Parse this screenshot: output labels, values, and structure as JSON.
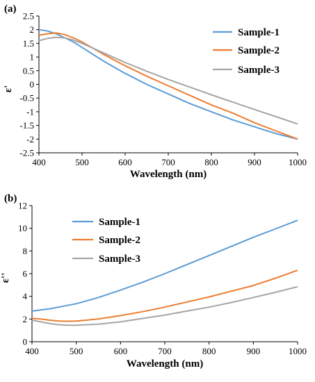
{
  "chart_data": [
    {
      "type": "line",
      "panel_label": "(a)",
      "xlabel": "Wavelength  (nm)",
      "ylabel": "ε'",
      "xlim": [
        400,
        1000
      ],
      "ylim": [
        -2.5,
        2.5
      ],
      "x_ticks": [
        "400",
        "500",
        "600",
        "700",
        "800",
        "900",
        "1000"
      ],
      "y_ticks": [
        "2.5",
        "2",
        "1.5",
        "1",
        "0.5",
        "0",
        "-0.5",
        "-1",
        "-1.5",
        "-2",
        "-2.5"
      ],
      "grid": false,
      "legend_position": "top-right",
      "x": [
        400,
        420,
        440,
        460,
        480,
        500,
        550,
        600,
        650,
        700,
        750,
        800,
        850,
        900,
        950,
        1000
      ],
      "series": [
        {
          "name": "Sample-1",
          "color": "#5B9BD5",
          "values": [
            2.0,
            1.95,
            1.85,
            1.7,
            1.55,
            1.35,
            0.85,
            0.4,
            0.0,
            -0.35,
            -0.7,
            -1.0,
            -1.3,
            -1.55,
            -1.8,
            -2.0
          ]
        },
        {
          "name": "Sample-2",
          "color": "#ED7D31",
          "values": [
            1.8,
            1.85,
            1.88,
            1.82,
            1.7,
            1.55,
            1.1,
            0.68,
            0.3,
            -0.05,
            -0.4,
            -0.75,
            -1.05,
            -1.4,
            -1.7,
            -2.0
          ]
        },
        {
          "name": "Sample-3",
          "color": "#A5A5A5",
          "values": [
            1.6,
            1.68,
            1.72,
            1.7,
            1.62,
            1.5,
            1.15,
            0.8,
            0.48,
            0.18,
            -0.1,
            -0.38,
            -0.65,
            -0.92,
            -1.18,
            -1.45
          ]
        }
      ]
    },
    {
      "type": "line",
      "panel_label": "(b)",
      "xlabel": "Wavelength  (nm)",
      "ylabel": "ε''",
      "xlim": [
        400,
        1000
      ],
      "ylim": [
        0,
        12
      ],
      "x_ticks": [
        "400",
        "500",
        "600",
        "700",
        "800",
        "900",
        "1000"
      ],
      "y_ticks": [
        "12",
        "10",
        "8",
        "6",
        "4",
        "2",
        "0"
      ],
      "grid": false,
      "legend_position": "top-left",
      "x": [
        400,
        420,
        440,
        460,
        480,
        500,
        550,
        600,
        650,
        700,
        750,
        800,
        850,
        900,
        950,
        1000
      ],
      "series": [
        {
          "name": "Sample-1",
          "color": "#5B9BD5",
          "values": [
            2.7,
            2.8,
            2.9,
            3.05,
            3.2,
            3.35,
            3.9,
            4.55,
            5.25,
            6.0,
            6.8,
            7.6,
            8.4,
            9.2,
            9.95,
            10.7
          ]
        },
        {
          "name": "Sample-2",
          "color": "#ED7D31",
          "values": [
            2.05,
            2.0,
            1.9,
            1.82,
            1.8,
            1.82,
            2.0,
            2.3,
            2.65,
            3.05,
            3.5,
            3.95,
            4.45,
            4.95,
            5.6,
            6.3
          ]
        },
        {
          "name": "Sample-3",
          "color": "#A5A5A5",
          "values": [
            1.9,
            1.75,
            1.6,
            1.5,
            1.45,
            1.45,
            1.55,
            1.75,
            2.05,
            2.35,
            2.7,
            3.05,
            3.45,
            3.9,
            4.35,
            4.85
          ]
        }
      ]
    }
  ]
}
